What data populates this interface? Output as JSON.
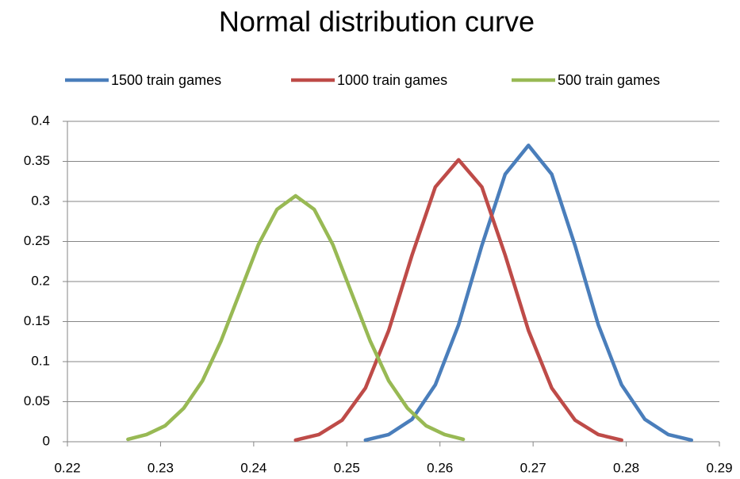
{
  "chart_data": {
    "type": "line",
    "title": "Normal distribution curve",
    "xlim": [
      0.22,
      0.29
    ],
    "xticks": [
      0.22,
      0.23,
      0.24,
      0.25,
      0.26,
      0.27,
      0.28,
      0.29
    ],
    "ylim": [
      0,
      0.4
    ],
    "yticks": [
      0,
      0.05,
      0.1,
      0.15,
      0.2,
      0.25,
      0.3,
      0.35,
      0.4
    ],
    "grid": true,
    "legend": "top",
    "series": [
      {
        "name": "1500 train games",
        "color": "#4a7ebb",
        "x": [
          0.252,
          0.2545,
          0.257,
          0.2595,
          0.262,
          0.2645,
          0.267,
          0.2695,
          0.272,
          0.2745,
          0.277,
          0.2795,
          0.282,
          0.2845,
          0.287
        ],
        "values": [
          0.002,
          0.009,
          0.028,
          0.071,
          0.146,
          0.245,
          0.334,
          0.37,
          0.334,
          0.245,
          0.146,
          0.071,
          0.028,
          0.009,
          0.002
        ]
      },
      {
        "name": "1000 train games",
        "color": "#be4b48",
        "x": [
          0.2445,
          0.247,
          0.2495,
          0.252,
          0.2545,
          0.257,
          0.2595,
          0.262,
          0.2645,
          0.267,
          0.2695,
          0.272,
          0.2745,
          0.277,
          0.2795
        ],
        "values": [
          0.002,
          0.009,
          0.027,
          0.067,
          0.139,
          0.233,
          0.318,
          0.352,
          0.318,
          0.233,
          0.139,
          0.067,
          0.027,
          0.009,
          0.002
        ]
      },
      {
        "name": "500 train games",
        "color": "#98b954",
        "x": [
          0.2265,
          0.2285,
          0.2305,
          0.2325,
          0.2345,
          0.2365,
          0.2385,
          0.2405,
          0.2425,
          0.2445,
          0.2465,
          0.2485,
          0.2505,
          0.2525,
          0.2545,
          0.2565,
          0.2585,
          0.2605,
          0.2625
        ],
        "values": [
          0.003,
          0.009,
          0.02,
          0.042,
          0.076,
          0.126,
          0.186,
          0.246,
          0.29,
          0.307,
          0.29,
          0.246,
          0.186,
          0.126,
          0.076,
          0.042,
          0.02,
          0.009,
          0.003
        ]
      }
    ]
  }
}
